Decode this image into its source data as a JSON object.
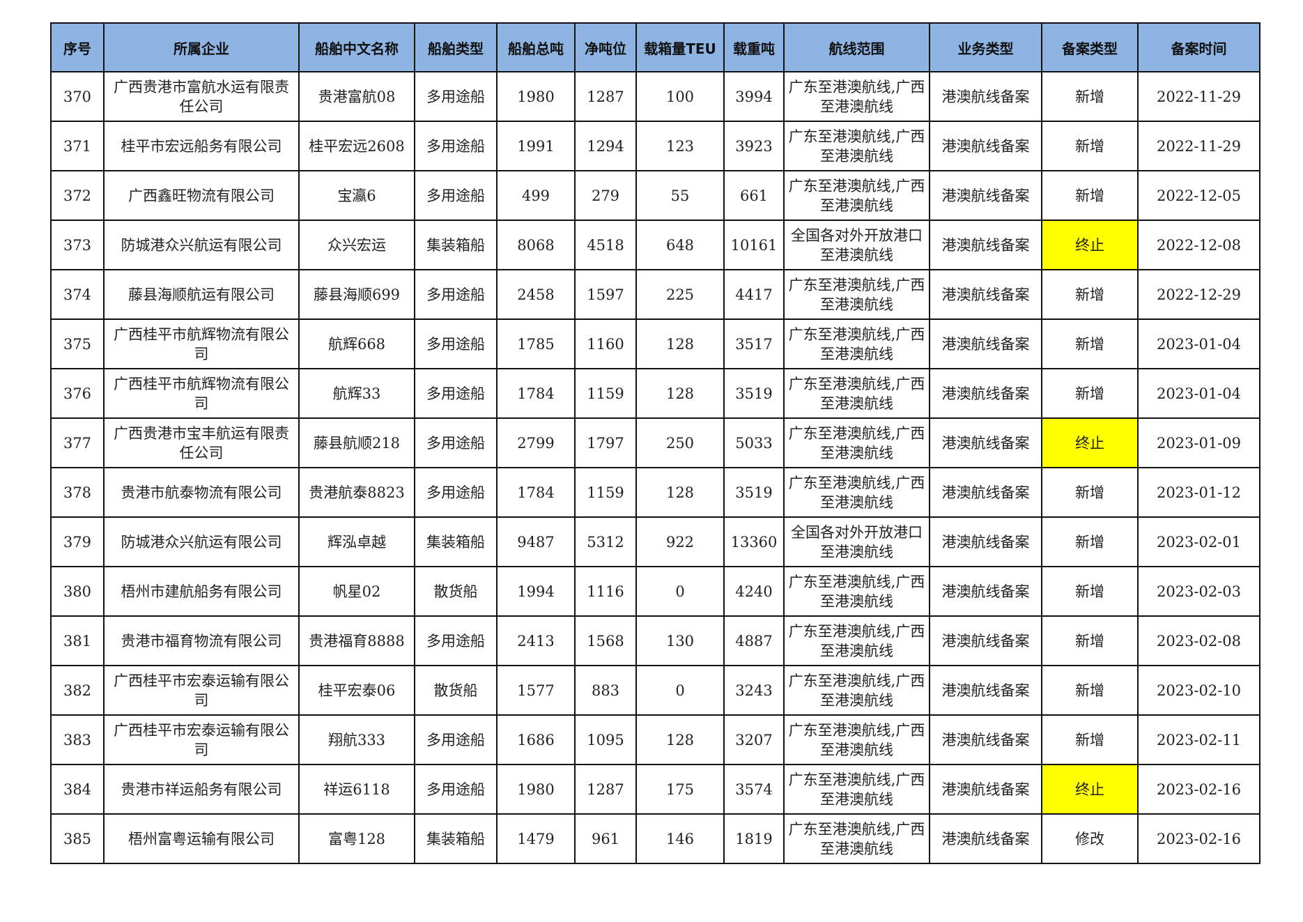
{
  "colors": {
    "header_bg": "#8db4e2",
    "highlight": "#ffff00"
  },
  "columns": [
    "序号",
    "所属企业",
    "船舶中文名称",
    "船舶类型",
    "船舶总吨",
    "净吨位",
    "载箱量TEU",
    "载重吨",
    "航线范围",
    "业务类型",
    "备案类型",
    "备案时间"
  ],
  "rows": [
    [
      "370",
      "广西贵港市富航水运有限责任公司",
      "贵港富航08",
      "多用途船",
      "1980",
      "1287",
      "100",
      "3994",
      "广东至港澳航线,广西至港澳航线",
      "港澳航线备案",
      "新增",
      "2022-11-29"
    ],
    [
      "371",
      "桂平市宏远船务有限公司",
      "桂平宏远2608",
      "多用途船",
      "1991",
      "1294",
      "123",
      "3923",
      "广东至港澳航线,广西至港澳航线",
      "港澳航线备案",
      "新增",
      "2022-11-29"
    ],
    [
      "372",
      "广西鑫旺物流有限公司",
      "宝瀛6",
      "多用途船",
      "499",
      "279",
      "55",
      "661",
      "广东至港澳航线,广西至港澳航线",
      "港澳航线备案",
      "新增",
      "2022-12-05"
    ],
    [
      "373",
      "防城港众兴航运有限公司",
      "众兴宏运",
      "集装箱船",
      "8068",
      "4518",
      "648",
      "10161",
      "全国各对外开放港口至港澳航线",
      "港澳航线备案",
      "终止",
      "2022-12-08"
    ],
    [
      "374",
      "藤县海顺航运有限公司",
      "藤县海顺699",
      "多用途船",
      "2458",
      "1597",
      "225",
      "4417",
      "广东至港澳航线,广西至港澳航线",
      "港澳航线备案",
      "新增",
      "2022-12-29"
    ],
    [
      "375",
      "广西桂平市航辉物流有限公司",
      "航辉668",
      "多用途船",
      "1785",
      "1160",
      "128",
      "3517",
      "广东至港澳航线,广西至港澳航线",
      "港澳航线备案",
      "新增",
      "2023-01-04"
    ],
    [
      "376",
      "广西桂平市航辉物流有限公司",
      "航辉33",
      "多用途船",
      "1784",
      "1159",
      "128",
      "3519",
      "广东至港澳航线,广西至港澳航线",
      "港澳航线备案",
      "新增",
      "2023-01-04"
    ],
    [
      "377",
      "广西贵港市宝丰航运有限责任公司",
      "藤县航顺218",
      "多用途船",
      "2799",
      "1797",
      "250",
      "5033",
      "广东至港澳航线,广西至港澳航线",
      "港澳航线备案",
      "终止",
      "2023-01-09"
    ],
    [
      "378",
      "贵港市航泰物流有限公司",
      "贵港航泰8823",
      "多用途船",
      "1784",
      "1159",
      "128",
      "3519",
      "广东至港澳航线,广西至港澳航线",
      "港澳航线备案",
      "新增",
      "2023-01-12"
    ],
    [
      "379",
      "防城港众兴航运有限公司",
      "辉泓卓越",
      "集装箱船",
      "9487",
      "5312",
      "922",
      "13360",
      "全国各对外开放港口至港澳航线",
      "港澳航线备案",
      "新增",
      "2023-02-01"
    ],
    [
      "380",
      "梧州市建航船务有限公司",
      "帆星02",
      "散货船",
      "1994",
      "1116",
      "0",
      "4240",
      "广东至港澳航线,广西至港澳航线",
      "港澳航线备案",
      "新增",
      "2023-02-03"
    ],
    [
      "381",
      "贵港市福育物流有限公司",
      "贵港福育8888",
      "多用途船",
      "2413",
      "1568",
      "130",
      "4887",
      "广东至港澳航线,广西至港澳航线",
      "港澳航线备案",
      "新增",
      "2023-02-08"
    ],
    [
      "382",
      "广西桂平市宏泰运输有限公司",
      "桂平宏泰06",
      "散货船",
      "1577",
      "883",
      "0",
      "3243",
      "广东至港澳航线,广西至港澳航线",
      "港澳航线备案",
      "新增",
      "2023-02-10"
    ],
    [
      "383",
      "广西桂平市宏泰运输有限公司",
      "翔航333",
      "多用途船",
      "1686",
      "1095",
      "128",
      "3207",
      "广东至港澳航线,广西至港澳航线",
      "港澳航线备案",
      "新增",
      "2023-02-11"
    ],
    [
      "384",
      "贵港市祥运船务有限公司",
      "祥运6118",
      "多用途船",
      "1980",
      "1287",
      "175",
      "3574",
      "广东至港澳航线,广西至港澳航线",
      "港澳航线备案",
      "终止",
      "2023-02-16"
    ],
    [
      "385",
      "梧州富粤运输有限公司",
      "富粤128",
      "集装箱船",
      "1479",
      "961",
      "146",
      "1819",
      "广东至港澳航线,广西至港澳航线",
      "港澳航线备案",
      "修改",
      "2023-02-16"
    ]
  ],
  "highlighted_values": [
    "终止"
  ]
}
